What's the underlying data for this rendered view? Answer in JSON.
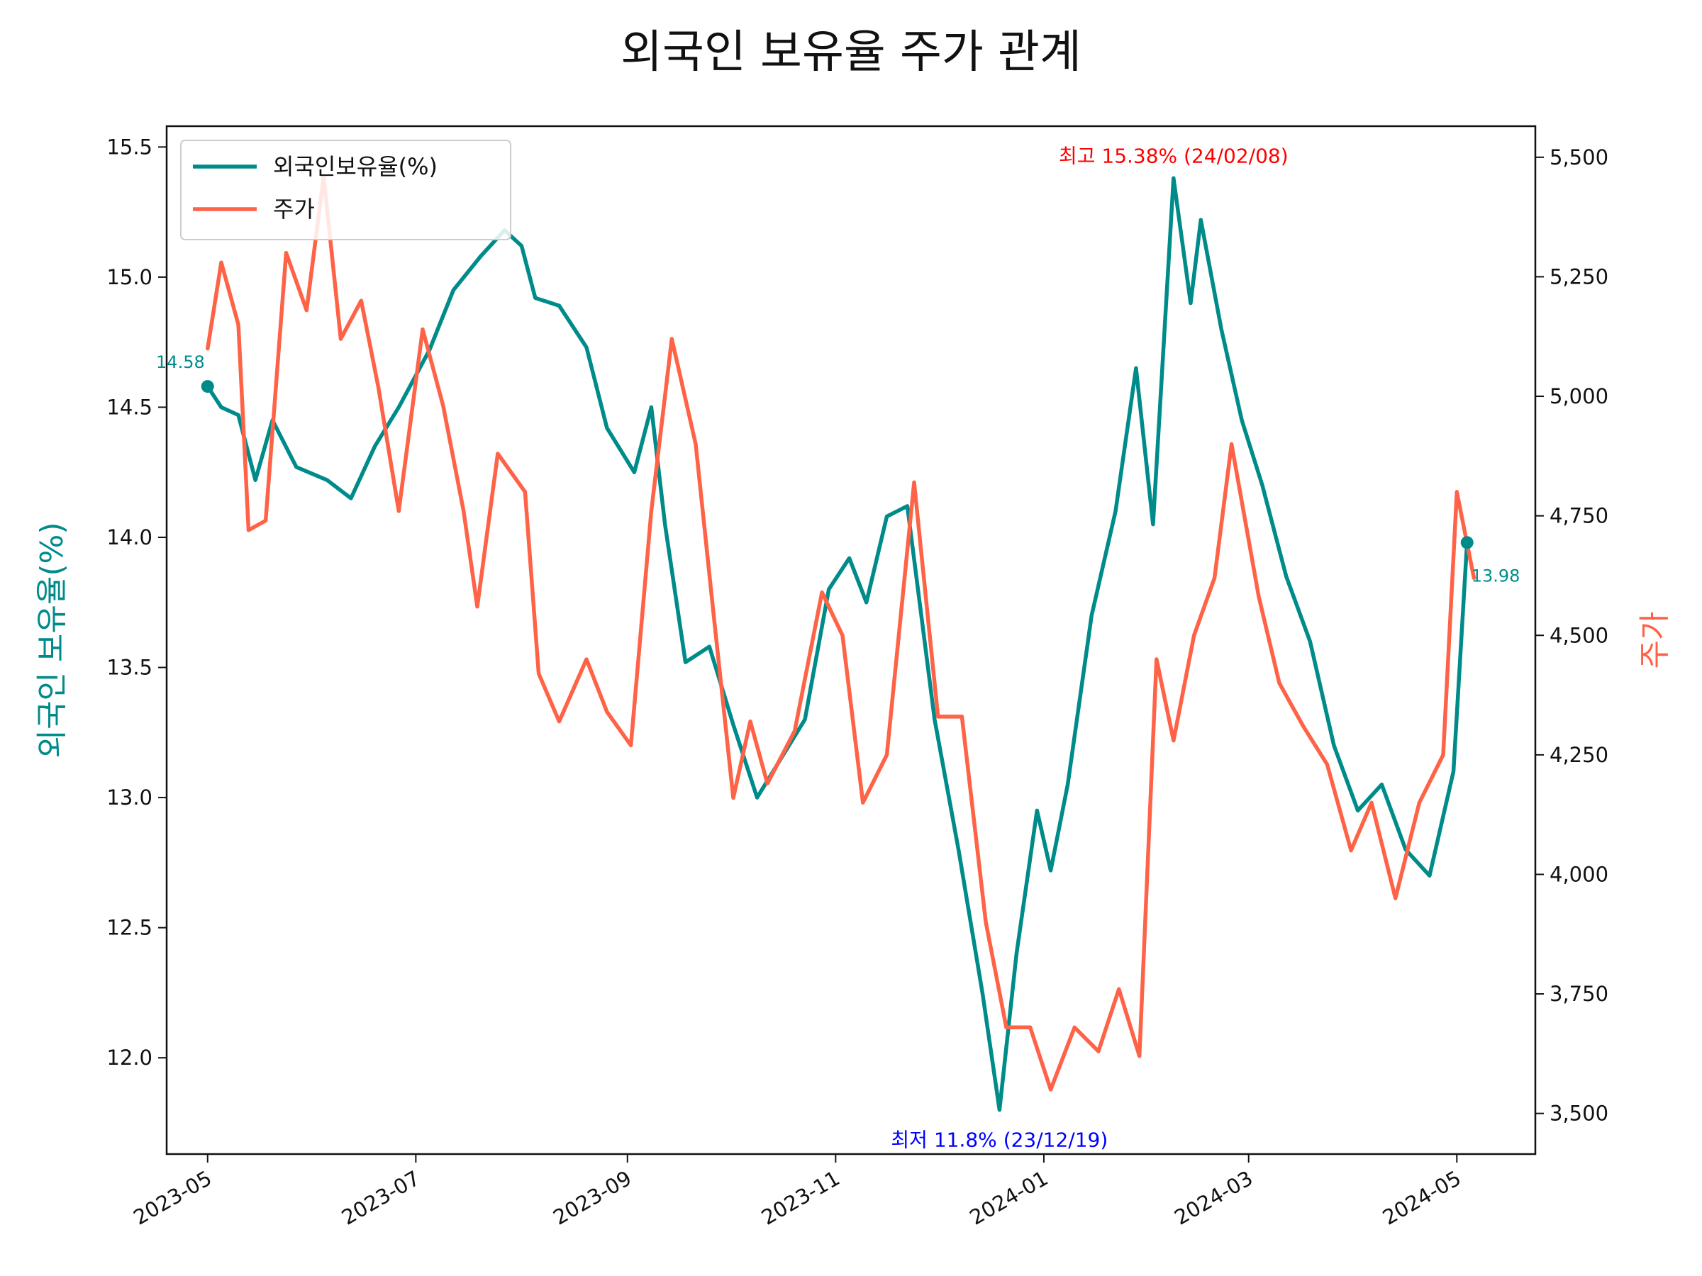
{
  "chart_data": {
    "type": "line",
    "title": "외국인 보유율 주가 관계",
    "ylabel_left": "외국인 보유율(%)",
    "ylabel_right": "주가",
    "ylim_left": [
      11.63,
      15.58
    ],
    "ylim_right": [
      3415,
      5565
    ],
    "yticks_left": [
      "12.0",
      "12.5",
      "13.0",
      "13.5",
      "14.0",
      "14.5",
      "15.0",
      "15.5"
    ],
    "yticks_right": [
      "3,500",
      "3,750",
      "4,000",
      "4,250",
      "4,500",
      "4,750",
      "5,000",
      "5,250",
      "5,500"
    ],
    "xlim": [
      "2023-04-19",
      "2024-05-24"
    ],
    "xticks": [
      "2023-05",
      "2023-07",
      "2023-09",
      "2023-11",
      "2024-01",
      "2024-03",
      "2024-05"
    ],
    "xtick_dates": [
      "2023-05-01",
      "2023-07-01",
      "2023-09-01",
      "2023-11-01",
      "2024-01-01",
      "2024-03-01",
      "2024-05-01"
    ],
    "legend_position": "upper left",
    "colors": {
      "ownership": "#008b8b",
      "price": "#ff6347",
      "max_annotation": "#ff0000",
      "min_annotation": "#0000ff"
    },
    "series": [
      {
        "name": "외국인보유율(%)",
        "axis": "left",
        "color": "#008b8b",
        "points": [
          [
            "2023-05-01",
            14.58
          ],
          [
            "2023-05-05",
            14.5
          ],
          [
            "2023-05-10",
            14.47
          ],
          [
            "2023-05-15",
            14.22
          ],
          [
            "2023-05-20",
            14.45
          ],
          [
            "2023-05-27",
            14.27
          ],
          [
            "2023-06-05",
            14.22
          ],
          [
            "2023-06-12",
            14.15
          ],
          [
            "2023-06-19",
            14.35
          ],
          [
            "2023-06-26",
            14.5
          ],
          [
            "2023-07-05",
            14.72
          ],
          [
            "2023-07-12",
            14.95
          ],
          [
            "2023-07-20",
            15.08
          ],
          [
            "2023-07-27",
            15.18
          ],
          [
            "2023-08-01",
            15.12
          ],
          [
            "2023-08-05",
            14.92
          ],
          [
            "2023-08-12",
            14.89
          ],
          [
            "2023-08-20",
            14.73
          ],
          [
            "2023-08-26",
            14.42
          ],
          [
            "2023-09-03",
            14.25
          ],
          [
            "2023-09-08",
            14.5
          ],
          [
            "2023-09-12",
            14.05
          ],
          [
            "2023-09-18",
            13.52
          ],
          [
            "2023-09-25",
            13.58
          ],
          [
            "2023-10-02",
            13.28
          ],
          [
            "2023-10-09",
            13.0
          ],
          [
            "2023-10-16",
            13.15
          ],
          [
            "2023-10-23",
            13.3
          ],
          [
            "2023-10-30",
            13.8
          ],
          [
            "2023-11-05",
            13.92
          ],
          [
            "2023-11-10",
            13.75
          ],
          [
            "2023-11-16",
            14.08
          ],
          [
            "2023-11-22",
            14.12
          ],
          [
            "2023-11-30",
            13.3
          ],
          [
            "2023-12-07",
            12.8
          ],
          [
            "2023-12-14",
            12.25
          ],
          [
            "2023-12-19",
            11.8
          ],
          [
            "2023-12-24",
            12.4
          ],
          [
            "2023-12-30",
            12.95
          ],
          [
            "2024-01-03",
            12.72
          ],
          [
            "2024-01-08",
            13.05
          ],
          [
            "2024-01-15",
            13.7
          ],
          [
            "2024-01-22",
            14.1
          ],
          [
            "2024-01-28",
            14.65
          ],
          [
            "2024-02-02",
            14.05
          ],
          [
            "2024-02-08",
            15.38
          ],
          [
            "2024-02-13",
            14.9
          ],
          [
            "2024-02-16",
            15.22
          ],
          [
            "2024-02-22",
            14.8
          ],
          [
            "2024-02-28",
            14.45
          ],
          [
            "2024-03-05",
            14.2
          ],
          [
            "2024-03-12",
            13.85
          ],
          [
            "2024-03-19",
            13.6
          ],
          [
            "2024-03-26",
            13.2
          ],
          [
            "2024-04-02",
            12.95
          ],
          [
            "2024-04-09",
            13.05
          ],
          [
            "2024-04-16",
            12.8
          ],
          [
            "2024-04-23",
            12.7
          ],
          [
            "2024-04-30",
            13.1
          ],
          [
            "2024-05-04",
            13.98
          ]
        ]
      },
      {
        "name": "주가",
        "axis": "right",
        "color": "#ff6347",
        "points": [
          [
            "2023-05-01",
            5100
          ],
          [
            "2023-05-05",
            5280
          ],
          [
            "2023-05-10",
            5150
          ],
          [
            "2023-05-13",
            4720
          ],
          [
            "2023-05-18",
            4740
          ],
          [
            "2023-05-24",
            5300
          ],
          [
            "2023-05-30",
            5180
          ],
          [
            "2023-06-04",
            5460
          ],
          [
            "2023-06-09",
            5120
          ],
          [
            "2023-06-15",
            5200
          ],
          [
            "2023-06-20",
            5020
          ],
          [
            "2023-06-26",
            4760
          ],
          [
            "2023-07-03",
            5140
          ],
          [
            "2023-07-09",
            4980
          ],
          [
            "2023-07-15",
            4760
          ],
          [
            "2023-07-19",
            4560
          ],
          [
            "2023-07-25",
            4880
          ],
          [
            "2023-08-02",
            4800
          ],
          [
            "2023-08-06",
            4420
          ],
          [
            "2023-08-12",
            4320
          ],
          [
            "2023-08-20",
            4450
          ],
          [
            "2023-08-26",
            4340
          ],
          [
            "2023-09-02",
            4270
          ],
          [
            "2023-09-08",
            4760
          ],
          [
            "2023-09-14",
            5120
          ],
          [
            "2023-09-21",
            4900
          ],
          [
            "2023-09-26",
            4560
          ],
          [
            "2023-10-02",
            4160
          ],
          [
            "2023-10-07",
            4320
          ],
          [
            "2023-10-12",
            4190
          ],
          [
            "2023-10-20",
            4300
          ],
          [
            "2023-10-28",
            4590
          ],
          [
            "2023-11-03",
            4500
          ],
          [
            "2023-11-09",
            4150
          ],
          [
            "2023-11-16",
            4250
          ],
          [
            "2023-11-24",
            4820
          ],
          [
            "2023-12-01",
            4330
          ],
          [
            "2023-12-08",
            4330
          ],
          [
            "2023-12-15",
            3900
          ],
          [
            "2023-12-21",
            3680
          ],
          [
            "2023-12-28",
            3680
          ],
          [
            "2024-01-03",
            3550
          ],
          [
            "2024-01-10",
            3680
          ],
          [
            "2024-01-17",
            3630
          ],
          [
            "2024-01-23",
            3760
          ],
          [
            "2024-01-29",
            3620
          ],
          [
            "2024-02-03",
            4450
          ],
          [
            "2024-02-08",
            4280
          ],
          [
            "2024-02-14",
            4500
          ],
          [
            "2024-02-20",
            4620
          ],
          [
            "2024-02-25",
            4900
          ],
          [
            "2024-03-04",
            4580
          ],
          [
            "2024-03-10",
            4400
          ],
          [
            "2024-03-17",
            4310
          ],
          [
            "2024-03-24",
            4230
          ],
          [
            "2024-03-31",
            4050
          ],
          [
            "2024-04-06",
            4150
          ],
          [
            "2024-04-13",
            3950
          ],
          [
            "2024-04-20",
            4150
          ],
          [
            "2024-04-27",
            4250
          ],
          [
            "2024-05-01",
            4800
          ],
          [
            "2024-05-06",
            4620
          ]
        ]
      }
    ],
    "annotations": {
      "max": {
        "text": "최고 15.38% (24/02/08)",
        "date": "2024-02-08",
        "value": 15.38
      },
      "min": {
        "text": "최저 11.8% (23/12/19)",
        "date": "2023-12-19",
        "value": 11.8
      },
      "start_value": {
        "text": "14.58",
        "date": "2023-05-01",
        "value": 14.58
      },
      "end_value": {
        "text": "13.98",
        "date": "2024-05-04",
        "value": 13.98
      }
    }
  }
}
